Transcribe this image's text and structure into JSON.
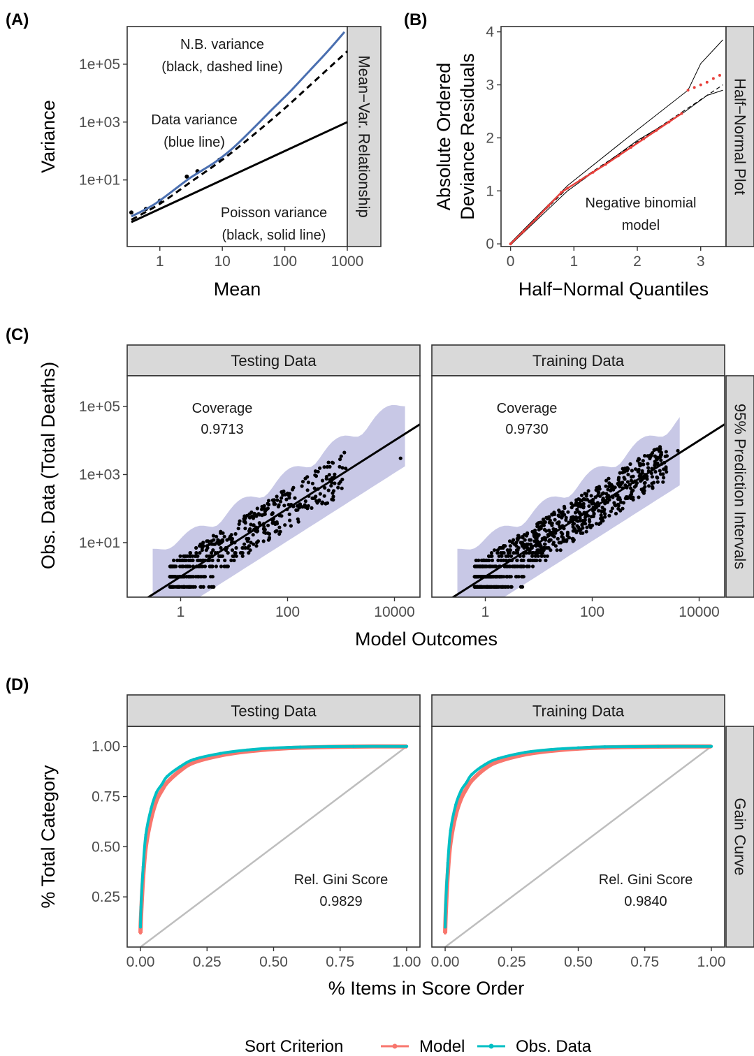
{
  "figure": {
    "panels": {
      "A": {
        "letter": "(A)"
      },
      "B": {
        "letter": "(B)"
      },
      "C": {
        "letter": "(C)"
      },
      "D": {
        "letter": "(D)"
      }
    },
    "legend": {
      "title": "Sort Criterion",
      "items": [
        {
          "label": "Model",
          "color": "#F8766D"
        },
        {
          "label": "Obs. Data",
          "color": "#00BFC4"
        }
      ]
    }
  },
  "chart_data": [
    {
      "panel": "A",
      "type": "line",
      "xlabel": "Mean",
      "ylabel": "Variance",
      "x_scale": "log10",
      "y_scale": "log10",
      "xlim": [
        0.3,
        1000
      ],
      "ylim": [
        0.05,
        2000000
      ],
      "x_ticks": [
        {
          "value": 1,
          "label": "1"
        },
        {
          "value": 10,
          "label": "10"
        },
        {
          "value": 100,
          "label": "100"
        },
        {
          "value": 1000,
          "label": "1000"
        }
      ],
      "y_ticks": [
        {
          "value": 10,
          "label": "1e+01"
        },
        {
          "value": 1000,
          "label": "1e+03"
        },
        {
          "value": 100000,
          "label": "1e+05"
        }
      ],
      "strip": "Mean−Var. Relationship",
      "annotations": [
        {
          "lines": [
            "N.B. variance",
            "(black, dashed line)"
          ]
        },
        {
          "lines": [
            "Data variance",
            "(blue line)"
          ]
        },
        {
          "lines": [
            "Poisson variance",
            "(black, solid line)"
          ]
        }
      ],
      "series": [
        {
          "name": "Data variance",
          "color": "#4A6FB0",
          "style": "solid",
          "x": [
            0.35,
            0.5,
            0.8,
            1.2,
            2,
            3,
            5,
            8,
            15,
            30,
            60,
            120,
            250,
            500,
            900
          ],
          "y": [
            0.55,
            0.8,
            1.4,
            2.6,
            6,
            11.5,
            23,
            44,
            130,
            550,
            2500,
            11000,
            60000,
            300000,
            1300000
          ]
        },
        {
          "name": "N.B. variance",
          "color": "#000000",
          "style": "dashed",
          "x": [
            0.35,
            1,
            3,
            10,
            30,
            100,
            300,
            1000
          ],
          "y": [
            0.42,
            1.5,
            8,
            50,
            330,
            3000,
            26000,
            280000
          ]
        },
        {
          "name": "Poisson variance",
          "color": "#000000",
          "style": "solid",
          "x": [
            0.35,
            1000
          ],
          "y": [
            0.35,
            1000
          ]
        }
      ],
      "points": {
        "x": [
          0.35,
          0.6,
          1,
          2.7,
          4,
          9
        ],
        "y": [
          0.75,
          1.0,
          1.9,
          13,
          20,
          50
        ]
      }
    },
    {
      "panel": "B",
      "type": "scatter",
      "xlabel": "Half−Normal Quantiles",
      "ylabel": "Absolute Ordered Deviance Residuals",
      "ylabel_lines": [
        "Absolute Ordered",
        "Deviance Residuals"
      ],
      "xlim": [
        -0.15,
        3.4
      ],
      "ylim": [
        -0.05,
        4.1
      ],
      "x_ticks": [
        {
          "value": 0,
          "label": "0"
        },
        {
          "value": 1,
          "label": "1"
        },
        {
          "value": 2,
          "label": "2"
        },
        {
          "value": 3,
          "label": "3"
        }
      ],
      "y_ticks": [
        {
          "value": 0,
          "label": "0"
        },
        {
          "value": 1,
          "label": "1"
        },
        {
          "value": 2,
          "label": "2"
        },
        {
          "value": 3,
          "label": "3"
        },
        {
          "value": 4,
          "label": "4"
        }
      ],
      "strip": "Half−Normal Plot",
      "annotation": [
        "Negative binomial",
        "model"
      ],
      "envelope_mean": {
        "x": [
          0,
          0.9,
          3.35
        ],
        "y": [
          0,
          1.05,
          3.0
        ]
      },
      "envelope_upper": {
        "x": [
          0,
          0.9,
          2,
          2.8,
          3.0,
          3.35
        ],
        "y": [
          0.02,
          1.1,
          2.15,
          2.9,
          3.4,
          3.85
        ]
      },
      "envelope_lower": {
        "x": [
          0,
          0.9,
          2,
          2.7,
          3.1,
          3.35
        ],
        "y": [
          -0.02,
          1.0,
          1.95,
          2.45,
          2.8,
          2.9
        ]
      },
      "residuals": {
        "color": "#E8413C",
        "x": [
          0,
          0.2,
          0.4,
          0.6,
          0.8,
          0.9,
          1.1,
          1.3,
          1.5,
          1.7,
          1.9,
          2.1,
          2.3,
          2.5,
          2.7,
          2.8,
          2.9,
          3.0,
          3.1,
          3.2,
          3.3
        ],
        "y": [
          0,
          0.23,
          0.47,
          0.72,
          0.97,
          1.05,
          1.2,
          1.35,
          1.5,
          1.66,
          1.82,
          1.98,
          2.14,
          2.3,
          2.46,
          2.9,
          2.95,
          3.0,
          3.05,
          3.12,
          3.18
        ]
      }
    },
    {
      "panel": "C",
      "type": "scatter",
      "xlabel": "Model Outcomes",
      "ylabel": "Obs. Data (Total Deaths)",
      "x_scale": "log10",
      "y_scale": "log10",
      "xlim": [
        0.1,
        30000
      ],
      "ylim": [
        0.25,
        800000
      ],
      "x_ticks": [
        {
          "value": 1,
          "label": "1"
        },
        {
          "value": 100,
          "label": "100"
        },
        {
          "value": 10000,
          "label": "10000"
        }
      ],
      "y_ticks": [
        {
          "value": 10,
          "label": "1e+01"
        },
        {
          "value": 1000,
          "label": "1e+03"
        },
        {
          "value": 100000,
          "label": "1e+05"
        }
      ],
      "strip_right": "95% Prediction Intervals",
      "band_color": "#C8C8E6",
      "facets": [
        {
          "name": "Testing Data",
          "annotation": [
            "Coverage",
            "0.9713"
          ],
          "xmax": 18000,
          "top_point": [
            13000,
            3000
          ]
        },
        {
          "name": "Training Data",
          "annotation": [
            "Coverage",
            "0.9730"
          ],
          "xmax": 4500,
          "top_point": [
            4000,
            5000
          ]
        }
      ]
    },
    {
      "panel": "D",
      "type": "line",
      "xlabel": "% Items in Score Order",
      "ylabel": "% Total Category",
      "xlim": [
        -0.05,
        1.05
      ],
      "ylim": [
        0,
        1.1
      ],
      "x_ticks": [
        {
          "value": 0,
          "label": "0.00"
        },
        {
          "value": 0.25,
          "label": "0.25"
        },
        {
          "value": 0.5,
          "label": "0.50"
        },
        {
          "value": 0.75,
          "label": "0.75"
        },
        {
          "value": 1,
          "label": "1.00"
        }
      ],
      "y_ticks": [
        {
          "value": 0.25,
          "label": "0.25"
        },
        {
          "value": 0.5,
          "label": "0.50"
        },
        {
          "value": 0.75,
          "label": "0.75"
        },
        {
          "value": 1,
          "label": "1.00"
        }
      ],
      "strip_right": "Gain Curve",
      "diagonal_color": "#BEBEBE",
      "facets": [
        {
          "name": "Testing Data",
          "annotation": [
            "Rel. Gini Score",
            "0.9829"
          ],
          "series": [
            {
              "name": "Model",
              "color": "#F8766D",
              "x": [
                0,
                0.002,
                0.01,
                0.02,
                0.04,
                0.06,
                0.08,
                0.1,
                0.15,
                0.2,
                0.3,
                0.4,
                0.5,
                0.6,
                0.8,
                1.0
              ],
              "y": [
                0.07,
                0.15,
                0.35,
                0.5,
                0.64,
                0.73,
                0.78,
                0.82,
                0.88,
                0.92,
                0.955,
                0.975,
                0.987,
                0.994,
                0.999,
                1.0
              ]
            },
            {
              "name": "Obs. Data",
              "color": "#00BFC4",
              "x": [
                0,
                0.002,
                0.01,
                0.02,
                0.04,
                0.06,
                0.08,
                0.1,
                0.15,
                0.2,
                0.3,
                0.4,
                0.5,
                0.6,
                0.8,
                1.0
              ],
              "y": [
                0.1,
                0.2,
                0.4,
                0.56,
                0.69,
                0.77,
                0.81,
                0.85,
                0.9,
                0.935,
                0.965,
                0.982,
                0.992,
                0.997,
                1.0,
                1.0
              ]
            }
          ]
        },
        {
          "name": "Training Data",
          "annotation": [
            "Rel. Gini Score",
            "0.9840"
          ],
          "series": [
            {
              "name": "Model",
              "color": "#F8766D",
              "x": [
                0,
                0.002,
                0.01,
                0.02,
                0.04,
                0.06,
                0.08,
                0.1,
                0.15,
                0.2,
                0.3,
                0.4,
                0.5,
                0.6,
                0.8,
                1.0
              ],
              "y": [
                0.07,
                0.16,
                0.37,
                0.52,
                0.66,
                0.74,
                0.79,
                0.83,
                0.89,
                0.925,
                0.96,
                0.978,
                0.989,
                0.995,
                0.999,
                1.0
              ]
            },
            {
              "name": "Obs. Data",
              "color": "#00BFC4",
              "x": [
                0,
                0.002,
                0.01,
                0.02,
                0.04,
                0.06,
                0.08,
                0.1,
                0.15,
                0.2,
                0.3,
                0.4,
                0.5,
                0.6,
                0.8,
                1.0
              ],
              "y": [
                0.1,
                0.21,
                0.42,
                0.58,
                0.71,
                0.78,
                0.82,
                0.86,
                0.91,
                0.94,
                0.97,
                0.985,
                0.993,
                0.998,
                1.0,
                1.0
              ]
            }
          ]
        }
      ]
    }
  ]
}
